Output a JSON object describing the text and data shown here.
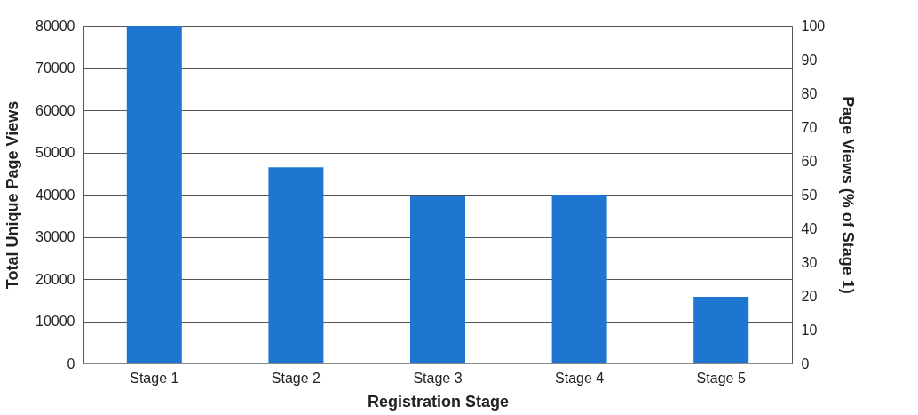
{
  "chart_data": {
    "type": "bar",
    "categories": [
      "Stage 1",
      "Stage 2",
      "Stage 3",
      "Stage 4",
      "Stage 5"
    ],
    "values": [
      80000,
      46500,
      39700,
      40000,
      15800
    ],
    "color": "#1e76d0",
    "xlabel": "Registration Stage",
    "ylabel": "Total Unique Page Views",
    "y2label": "Page Views (% of Stage 1)",
    "ylim": [
      0,
      80000
    ],
    "yticks": [
      0,
      10000,
      20000,
      30000,
      40000,
      50000,
      60000,
      70000,
      80000
    ],
    "y2lim": [
      0,
      100
    ],
    "y2ticks": [
      0,
      10,
      20,
      30,
      40,
      50,
      60,
      70,
      80,
      90,
      100
    ],
    "grid": "y"
  }
}
